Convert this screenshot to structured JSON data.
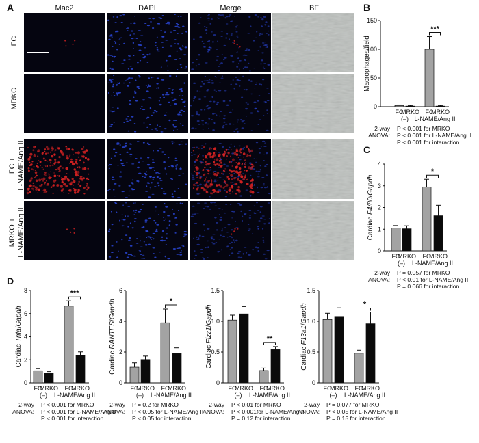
{
  "panel_letters": {
    "A": "A",
    "B": "B",
    "C": "C",
    "D": "D"
  },
  "panel_a": {
    "columns": [
      "Mac2",
      "DAPI",
      "Merge",
      "BF"
    ],
    "rows": [
      "FC",
      "MRKO",
      "FC + L-NAME/Ang II",
      "MRKO + L-NAME/Ang II"
    ],
    "colors": {
      "mac2": "#d42222",
      "dapi": "#2a46d6",
      "background": "#050510",
      "bf": "#bcc0bd"
    }
  },
  "stat_prefix": [
    "2-way",
    "ANOVA:"
  ],
  "group_labels": {
    "fc": "FC",
    "mrko": "MRKO",
    "ctrl": "(–)",
    "treat": "L-NAME/Ang II"
  },
  "colors": {
    "fc_bar": "#a3a3a3",
    "mrko_bar": "#0a0a0a"
  },
  "chart_data": [
    {
      "id": "B",
      "type": "bar",
      "ylabel": "Macrophages/field",
      "ylim": [
        0,
        150
      ],
      "yticks": [
        "0",
        "50",
        "100",
        "150"
      ],
      "categories": [
        "FC (–)",
        "MRKO (–)",
        "FC L-NAME/Ang II",
        "MRKO L-NAME/Ang II"
      ],
      "values": [
        2,
        1,
        100,
        1
      ],
      "errors": [
        1,
        1,
        22,
        1
      ],
      "significance": "***",
      "stats": [
        "P < 0.001 for MRKO",
        "P < 0.001 for L-NAME/Ang II",
        "P < 0.001 for interaction"
      ]
    },
    {
      "id": "C",
      "type": "bar",
      "ylabel_parts": [
        "Cardiac ",
        "F4/80",
        "/",
        "Gapdh"
      ],
      "ylim": [
        0,
        4
      ],
      "yticks": [
        "0",
        "1",
        "2",
        "3",
        "4"
      ],
      "categories": [
        "FC (–)",
        "MRKO (–)",
        "FC L-NAME/Ang II",
        "MRKO L-NAME/Ang II"
      ],
      "values": [
        1.05,
        1.02,
        2.95,
        1.62
      ],
      "errors": [
        0.12,
        0.14,
        0.35,
        0.48
      ],
      "significance": "*",
      "stats": [
        "P = 0.057 for MRKO",
        "P < 0.01 for L-NAME/Ang II",
        "P = 0.066 for interaction"
      ]
    },
    {
      "id": "D1",
      "type": "bar",
      "ylabel_parts": [
        "Cardiac ",
        "Tnfa",
        "/",
        "Gapdh"
      ],
      "ylim": [
        0,
        8
      ],
      "yticks": [
        "0",
        "2",
        "4",
        "6",
        "8"
      ],
      "categories": [
        "FC (–)",
        "MRKO (–)",
        "FC L-NAME/Ang II",
        "MRKO L-NAME/Ang II"
      ],
      "values": [
        1.05,
        0.82,
        6.65,
        2.4
      ],
      "errors": [
        0.18,
        0.15,
        0.45,
        0.28
      ],
      "significance": "***",
      "stats": [
        "P < 0.001 for MRKO",
        "P < 0.001 for L-NAME/Ang II",
        "P < 0.001 for interaction"
      ]
    },
    {
      "id": "D2",
      "type": "bar",
      "ylabel_parts": [
        "Cardiac ",
        "RANTES",
        "/",
        "Gapdh"
      ],
      "ylim": [
        0,
        6
      ],
      "yticks": [
        "0",
        "2",
        "4",
        "6"
      ],
      "categories": [
        "FC (–)",
        "MRKO (–)",
        "FC L-NAME/Ang II",
        "MRKO L-NAME/Ang II"
      ],
      "values": [
        1.02,
        1.52,
        3.9,
        1.9
      ],
      "errors": [
        0.28,
        0.22,
        0.9,
        0.38
      ],
      "significance": "*",
      "stats": [
        "P = 0.2 for MRKO",
        "P < 0.05 for L-NAME/Ang II",
        "P < 0.05 for interaction"
      ]
    },
    {
      "id": "D3",
      "type": "bar",
      "ylabel_parts": [
        "Cardiac ",
        "Fizz1",
        "/",
        "Gapdh"
      ],
      "ylim": [
        0,
        1.5
      ],
      "yticks": [
        "0",
        "0.5",
        "1.0",
        "1.5"
      ],
      "categories": [
        "FC (–)",
        "MRKO (–)",
        "FC L-NAME/Ang II",
        "MRKO L-NAME/Ang II"
      ],
      "values": [
        1.02,
        1.12,
        0.2,
        0.54
      ],
      "errors": [
        0.08,
        0.12,
        0.04,
        0.05
      ],
      "significance": "**",
      "stats": [
        "P < 0.01 for MRKO",
        "P < 0.001for L-NAME/Ang II",
        "P = 0.12 for interaction"
      ]
    },
    {
      "id": "D4",
      "type": "bar",
      "ylabel_parts": [
        "Cardiac ",
        "F13a1",
        "/",
        "Gapdh"
      ],
      "ylim": [
        0,
        1.5
      ],
      "yticks": [
        "0",
        "0.5",
        "1.0",
        "1.5"
      ],
      "categories": [
        "FC (–)",
        "MRKO (–)",
        "FC L-NAME/Ang II",
        "MRKO L-NAME/Ang II"
      ],
      "values": [
        1.03,
        1.08,
        0.48,
        0.96
      ],
      "errors": [
        0.1,
        0.14,
        0.05,
        0.19
      ],
      "significance": "*",
      "stats": [
        "P = 0.077 for MRKO",
        "P < 0.05 for L-NAME/Ang II",
        "P = 0.15 for interaction"
      ]
    }
  ]
}
